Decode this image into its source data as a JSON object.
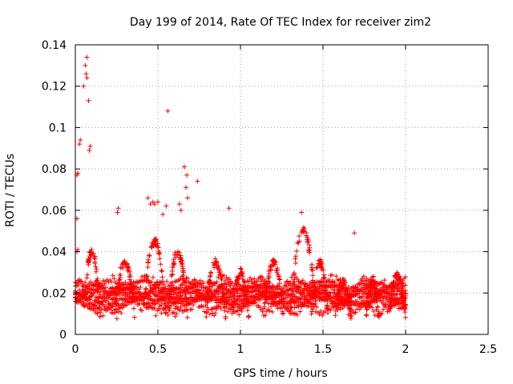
{
  "chart_data": {
    "type": "scatter",
    "title": "Day 199 of 2014, Rate Of TEC Index for receiver zim2",
    "xlabel": "GPS time / hours",
    "ylabel": "ROTI / TECUs",
    "xlim": [
      0,
      2.5
    ],
    "ylim": [
      0,
      0.14
    ],
    "xticks": [
      0,
      0.5,
      1,
      1.5,
      2,
      2.5
    ],
    "xtick_labels": [
      "0",
      "0.5",
      "1",
      "1.5",
      "2",
      "2.5"
    ],
    "yticks": [
      0,
      0.02,
      0.04,
      0.06,
      0.08,
      0.1,
      0.12,
      0.14
    ],
    "ytick_labels": [
      "0",
      "0.02",
      "0.04",
      "0.06",
      "0.08",
      "0.1",
      "0.12",
      "0.14"
    ],
    "grid": true,
    "marker": "+",
    "color": "#ff0000",
    "x_range_of_data": [
      0,
      2.0
    ],
    "highlighted_points": [
      {
        "x": 0.07,
        "y": 0.134
      },
      {
        "x": 0.06,
        "y": 0.13
      },
      {
        "x": 0.065,
        "y": 0.126
      },
      {
        "x": 0.07,
        "y": 0.124
      },
      {
        "x": 0.05,
        "y": 0.12
      },
      {
        "x": 0.08,
        "y": 0.113
      },
      {
        "x": 0.56,
        "y": 0.108
      },
      {
        "x": 0.03,
        "y": 0.094
      },
      {
        "x": 0.025,
        "y": 0.092
      },
      {
        "x": 0.09,
        "y": 0.091
      },
      {
        "x": 0.085,
        "y": 0.089
      },
      {
        "x": 0.66,
        "y": 0.081
      },
      {
        "x": 0.01,
        "y": 0.077
      },
      {
        "x": 0.015,
        "y": 0.078
      },
      {
        "x": 0.675,
        "y": 0.077
      },
      {
        "x": 0.74,
        "y": 0.074
      },
      {
        "x": 0.67,
        "y": 0.071
      },
      {
        "x": 0.68,
        "y": 0.066
      },
      {
        "x": 0.44,
        "y": 0.066
      },
      {
        "x": 0.5,
        "y": 0.064
      },
      {
        "x": 0.48,
        "y": 0.063
      },
      {
        "x": 0.455,
        "y": 0.063
      },
      {
        "x": 0.47,
        "y": 0.064
      },
      {
        "x": 0.55,
        "y": 0.062
      },
      {
        "x": 0.63,
        "y": 0.063
      },
      {
        "x": 0.64,
        "y": 0.06
      },
      {
        "x": 0.93,
        "y": 0.061
      },
      {
        "x": 0.26,
        "y": 0.061
      },
      {
        "x": 0.255,
        "y": 0.059
      },
      {
        "x": 0.53,
        "y": 0.058
      },
      {
        "x": 0.01,
        "y": 0.056
      },
      {
        "x": 1.37,
        "y": 0.059
      },
      {
        "x": 1.69,
        "y": 0.049
      },
      {
        "x": 0.015,
        "y": 0.041
      },
      {
        "x": 0.01,
        "y": 0.04
      }
    ]
  }
}
